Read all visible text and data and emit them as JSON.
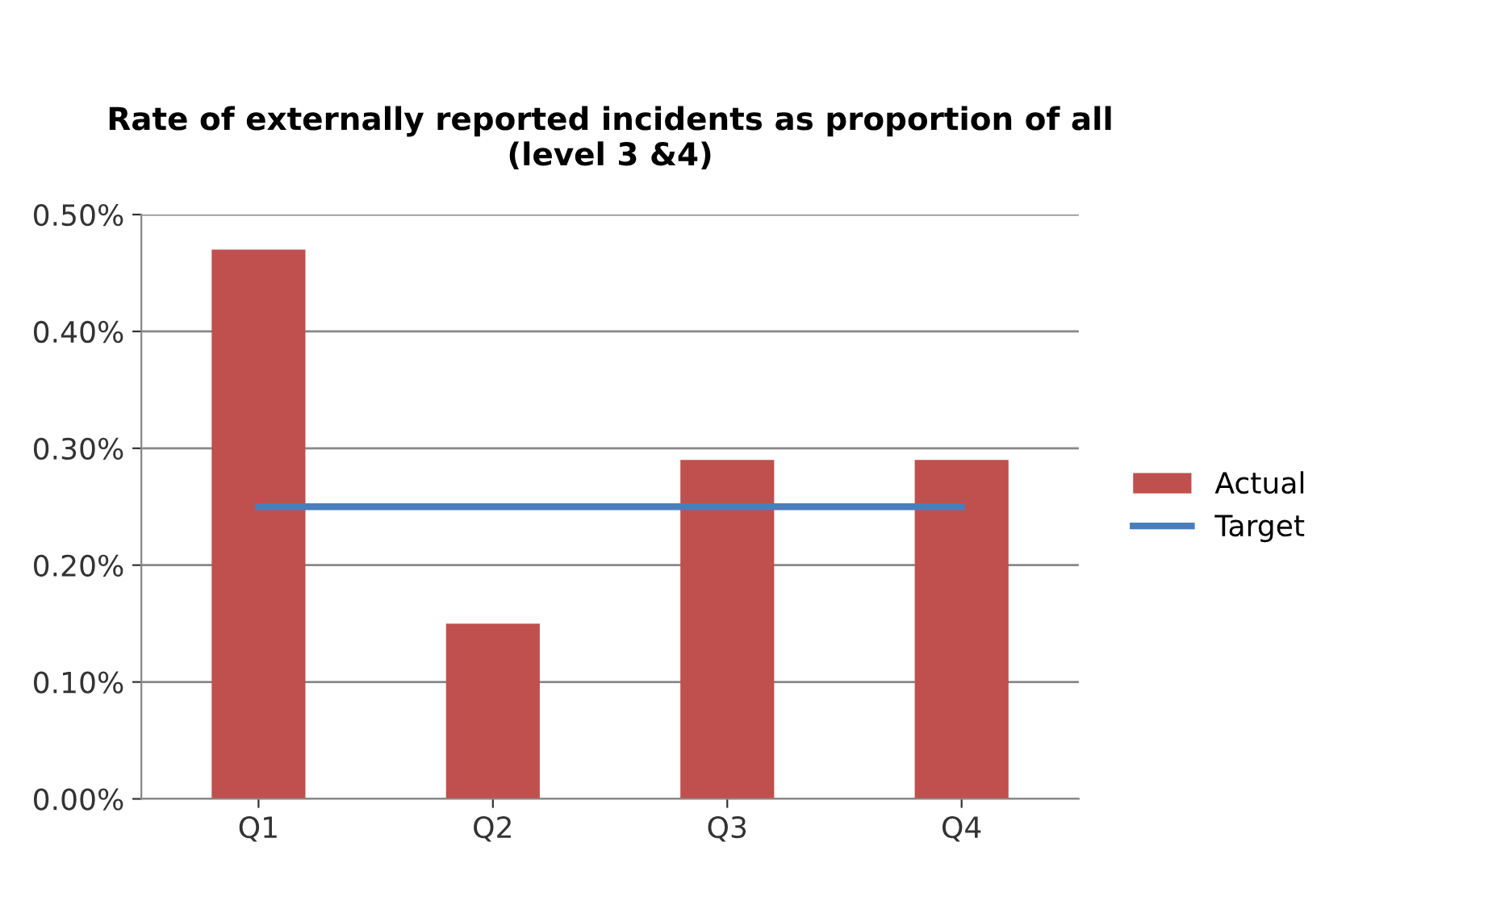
{
  "chart_data": {
    "type": "bar",
    "title": "Rate of externally reported incidents as proportion of all\n(level 3 &4)",
    "categories": [
      "Q1",
      "Q2",
      "Q3",
      "Q4"
    ],
    "series": [
      {
        "name": "Actual",
        "color": "#c0504d",
        "values": [
          0.47,
          0.15,
          0.29,
          0.29
        ]
      },
      {
        "name": "Target",
        "type": "line",
        "color": "#4a7ebb",
        "values": [
          0.25,
          0.25,
          0.25,
          0.25
        ]
      }
    ],
    "ylim": [
      0,
      0.5
    ],
    "yticks": [
      {
        "value": 0,
        "label": "0.00%"
      },
      {
        "value": 0.1,
        "label": "0.10%"
      },
      {
        "value": 0.2,
        "label": "0.20%"
      },
      {
        "value": 0.3,
        "label": "0.30%"
      },
      {
        "value": 0.4,
        "label": "0.40%"
      },
      {
        "value": 0.5,
        "label": "0.50%"
      }
    ],
    "grid": "y",
    "legend": "right",
    "marker": "none",
    "line_style": "solid"
  }
}
